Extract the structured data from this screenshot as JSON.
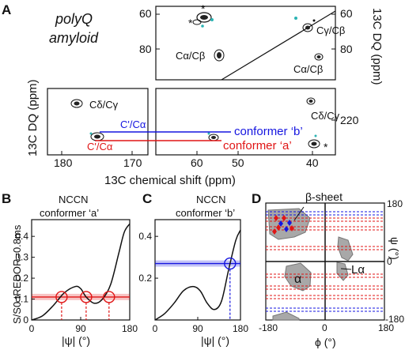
{
  "panel_a": {
    "letter": "A",
    "title_line1": "polyQ",
    "title_line2": "amyloid",
    "x_axis_label": "13C chemical shift (ppm)",
    "y_left_label": "13C DQ (ppm)",
    "y_right_label": "13C DQ (ppm)",
    "x_ticks": [
      "180",
      "170",
      "60",
      "50",
      "40"
    ],
    "y_ticks_upper_left": [
      "60",
      "80"
    ],
    "y_ticks_upper_right": [
      "60",
      "80"
    ],
    "y_tick_lower_right": "220",
    "peaks": {
      "ca_cb_left": "Cα/Cβ",
      "ca_cb_right": "Cα/Cβ",
      "cg_cb": "Cγ/Cβ",
      "cd_cg_left": "Cδ/Cγ",
      "cd_cg_right": "Cδ/Cγ",
      "co_ca_blue": "C'/Cα",
      "co_ca_red": "C'/Cα"
    },
    "conformer_b": "conformer ‘b’",
    "conformer_a": "conformer ‘a’",
    "star": "*"
  },
  "panel_b": {
    "letter": "B",
    "title_line1": "NCCN",
    "title_line2": "conformer ‘a’",
    "y_label": "S/S0 tREDOR=0.8ms",
    "x_label": "|ψ| (°)",
    "x_ticks": [
      "0",
      "90",
      "180"
    ],
    "y_ticks": [
      "0",
      "0.1",
      "0.2",
      "0.3",
      "0.4"
    ]
  },
  "panel_c": {
    "letter": "C",
    "title_line1": "NCCN",
    "title_line2": "conformer ‘b’",
    "x_label": "|ψ| (°)",
    "x_ticks": [
      "0",
      "90",
      "180"
    ],
    "y_ticks": [
      "0.2",
      "0.4"
    ]
  },
  "panel_d": {
    "letter": "D",
    "annotation_beta": "β-sheet",
    "annotation_alpha": "α",
    "annotation_lalpha": "Lα",
    "x_label": "ϕ (°)",
    "y_label": "ψ (°)",
    "x_ticks": [
      "-180",
      "0",
      "180"
    ],
    "y_ticks": [
      "180",
      "0",
      "-180"
    ]
  },
  "chart_data": [
    {
      "type": "line",
      "panel": "B",
      "x": [
        0,
        20,
        40,
        60,
        80,
        90,
        100,
        115,
        130,
        145,
        160,
        170,
        180
      ],
      "y": [
        0.0,
        0.02,
        0.07,
        0.13,
        0.16,
        0.15,
        0.11,
        0.08,
        0.1,
        0.17,
        0.32,
        0.42,
        0.46
      ],
      "reference_y": 0.11,
      "reference_band": [
        0.095,
        0.125
      ],
      "intersections_x": [
        55,
        100,
        142
      ],
      "xlim": [
        0,
        180
      ],
      "ylim": [
        0,
        0.48
      ]
    },
    {
      "type": "line",
      "panel": "C",
      "x": [
        0,
        20,
        40,
        60,
        80,
        95,
        110,
        125,
        140,
        155,
        170,
        180
      ],
      "y": [
        0.0,
        0.03,
        0.08,
        0.14,
        0.16,
        0.14,
        0.08,
        0.05,
        0.09,
        0.24,
        0.38,
        0.43
      ],
      "reference_y": 0.27,
      "reference_band": [
        0.255,
        0.285
      ],
      "intersections_x": [
        158
      ],
      "xlim": [
        0,
        180
      ],
      "ylim": [
        0,
        0.48
      ]
    }
  ]
}
